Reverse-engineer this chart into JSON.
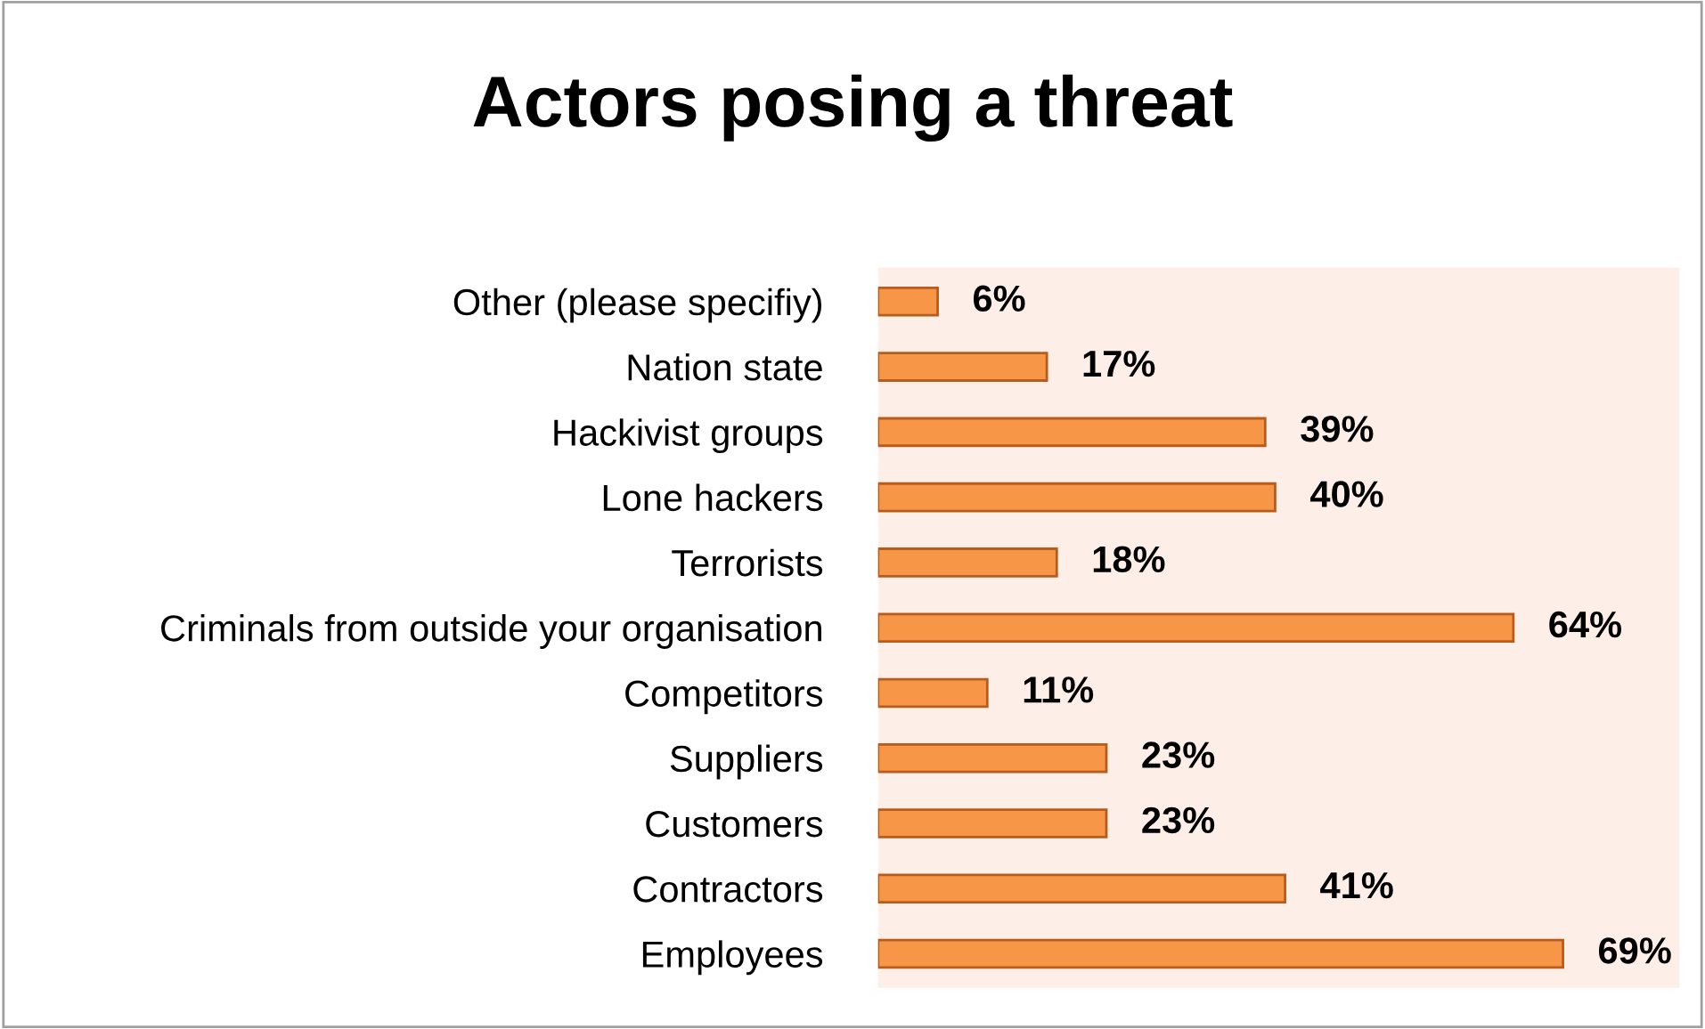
{
  "chart_data": {
    "type": "bar",
    "orientation": "horizontal",
    "title": "Actors posing a threat",
    "categories": [
      "Other (please specifiy)",
      "Nation state",
      "Hackivist groups",
      "Lone hackers",
      "Terrorists",
      "Criminals from outside your organisation",
      "Competitors",
      "Suppliers",
      "Customers",
      "Contractors",
      "Employees"
    ],
    "values": [
      6,
      17,
      39,
      40,
      18,
      64,
      11,
      23,
      23,
      41,
      69
    ],
    "value_labels": [
      "6%",
      "17%",
      "39%",
      "40%",
      "18%",
      "64%",
      "11%",
      "23%",
      "23%",
      "41%",
      "69%"
    ],
    "color": "#f79646",
    "grid": false,
    "legend": false,
    "tick_labels": "y"
  }
}
